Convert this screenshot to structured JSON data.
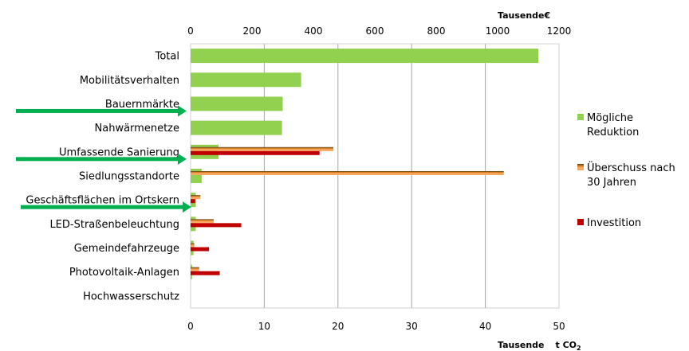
{
  "chart_data": {
    "type": "bar",
    "orientation": "horizontal",
    "categories": [
      "Total",
      "Mobilitätsverhalten",
      "Bauernmärkte",
      "Nahwärmenetze",
      "Umfassende Sanierung",
      "Siedlungsstandorte",
      "Geschäftsflächen im Ortskern",
      "LED-Straßenbeleuchtung",
      "Gemeindefahrzeuge",
      "Photovoltaik-Anlagen",
      "Hochwasserschutz"
    ],
    "series": [
      {
        "name": "Mögliche Reduktion",
        "axis": "bottom",
        "color": "#92d050",
        "values": [
          47.2,
          15.0,
          12.5,
          12.4,
          3.8,
          1.5,
          0.7,
          0.7,
          0.4,
          0.2,
          0
        ]
      },
      {
        "name": "Überschuss nach 30 Jahren",
        "axis": "top",
        "color": "#f79646",
        "values": [
          0,
          0,
          0,
          0,
          465,
          1020,
          32,
          75,
          12,
          28,
          0
        ]
      },
      {
        "name": "Investition",
        "axis": "top",
        "color": "#c00000",
        "values": [
          0,
          0,
          0,
          0,
          420,
          0,
          15,
          165,
          60,
          95,
          0
        ]
      }
    ],
    "axes": {
      "top": {
        "title": "Tausende",
        "title_suffix": "€",
        "ticks": [
          "0",
          "200",
          "400",
          "600",
          "800",
          "1000",
          "1200"
        ],
        "min": 0,
        "max": 1200
      },
      "bottom": {
        "title": "Tausende",
        "title_unit": "t CO",
        "title_sub": "2",
        "ticks": [
          "0",
          "10",
          "20",
          "30",
          "40",
          "50"
        ],
        "min": 0,
        "max": 50
      }
    },
    "legend": {
      "placement": "right",
      "entries": [
        {
          "lines": [
            "Mögliche",
            "Reduktion"
          ],
          "color": "#92d050"
        },
        {
          "lines": [
            "Überschuss nach",
            "30 Jahren"
          ],
          "color": "#f79646"
        },
        {
          "lines": [
            "Investition"
          ],
          "color": "#c00000"
        }
      ]
    },
    "highlighted_categories": [
      "Bauernmärkte",
      "Umfassende Sanierung",
      "Geschäftsflächen im Ortskern"
    ],
    "arrow_color": "#00b050",
    "grid": true
  }
}
